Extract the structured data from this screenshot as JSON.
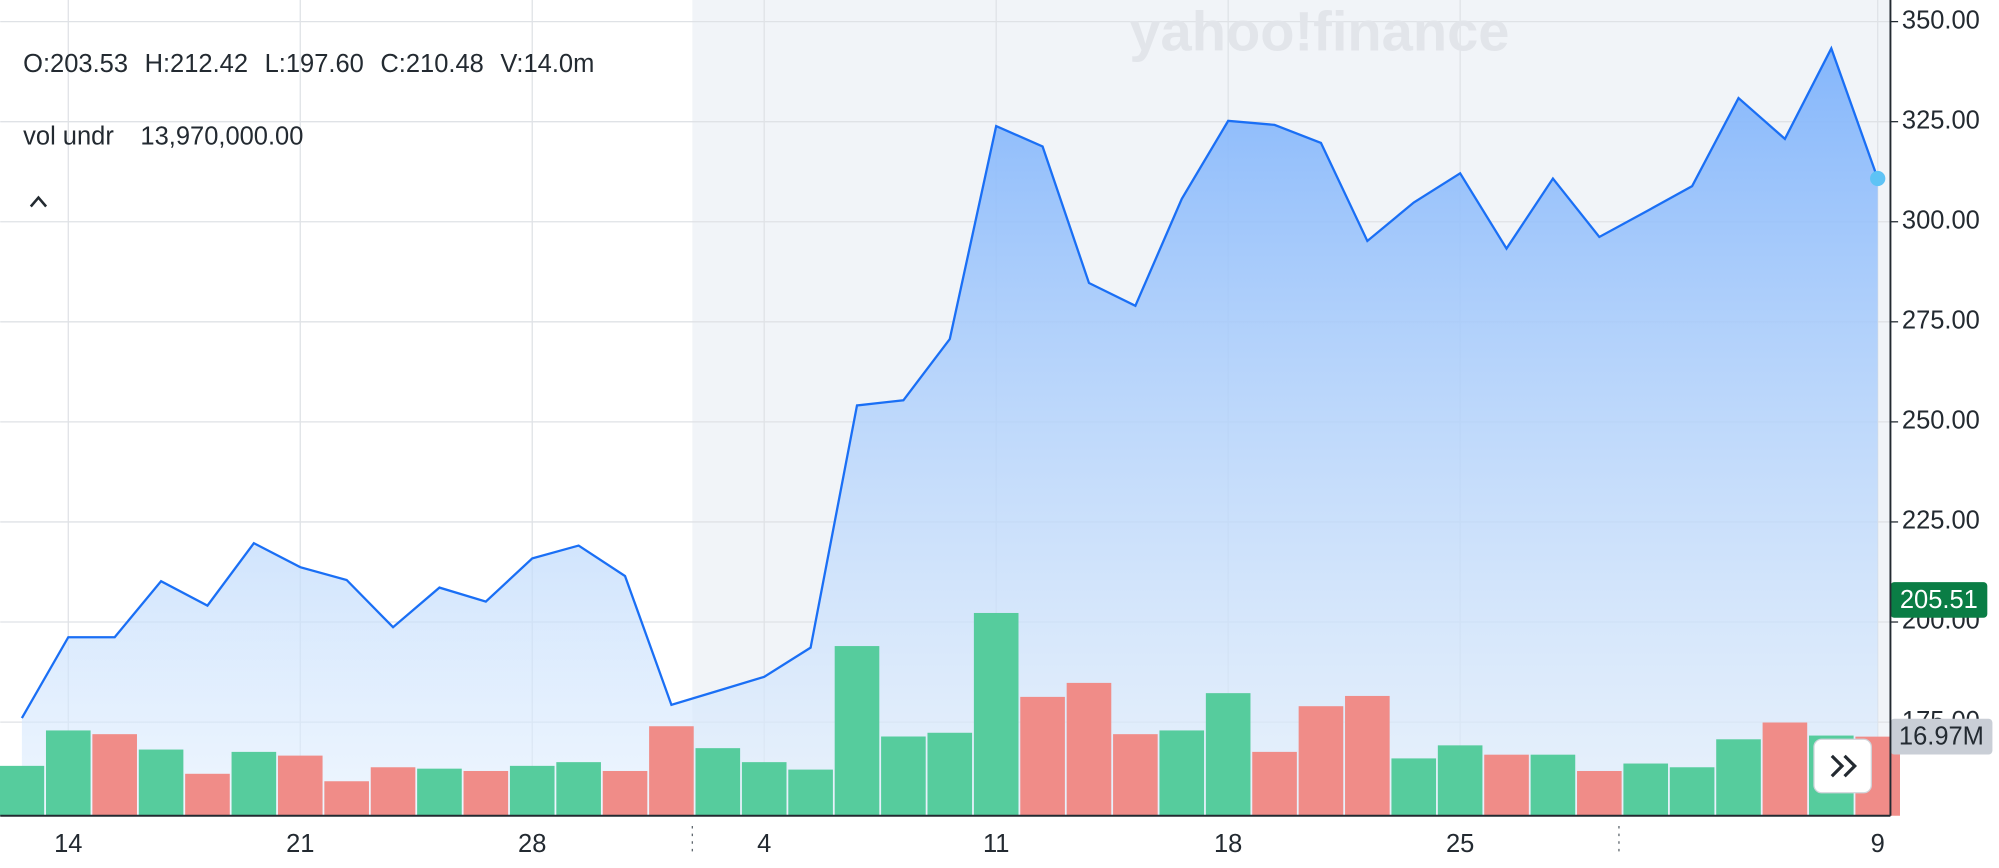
{
  "chart_data": {
    "type": "line",
    "watermark": "yahoo!finance",
    "info": [
      "O:203.53",
      "H:212.42",
      "L:197.60",
      "C:210.48",
      "V:14.0m"
    ],
    "study_name": "vol undr",
    "study_value": "13,970,000.00",
    "categories": [
      null,
      "14",
      null,
      null,
      null,
      null,
      "21",
      null,
      null,
      null,
      null,
      "28",
      null,
      null,
      null,
      null,
      "4",
      null,
      null,
      null,
      null,
      "11",
      null,
      null,
      null,
      null,
      "18",
      null,
      null,
      null,
      null,
      "25",
      null,
      null,
      null,
      null,
      null,
      null,
      null,
      null,
      "9"
    ],
    "series": [
      {
        "color": "#1a6ff5",
        "values": [
          176,
          196.2,
          196.2,
          210.2,
          204.1,
          219.7,
          213.7,
          210.5,
          198.7,
          208.6,
          205.1,
          215.9,
          219.1,
          211.5,
          179.3,
          182.8,
          186.3,
          193.6,
          254.1,
          255.4,
          270.7,
          323.9,
          318.8,
          284.7,
          279,
          305.7,
          325.2,
          324.2,
          319.7,
          295.2,
          304.8,
          312.1,
          293.3,
          310.8,
          296.2,
          302.5,
          308.9,
          330.9,
          320.7,
          343.3,
          310.8
        ]
      }
    ],
    "volume": {
      "axis": "y2",
      "values": [
        10.7,
        18.3,
        17.5,
        14.2,
        9.0,
        13.7,
        12.9,
        7.4,
        10.4,
        10.1,
        9.6,
        10.7,
        11.5,
        9.6,
        19.2,
        14.5,
        11.5,
        9.9,
        36.4,
        17.0,
        17.8,
        43.5,
        25.5,
        28.5,
        17.5,
        18.3,
        26.3,
        13.7,
        23.5,
        25.7,
        12.3,
        15.1,
        13.1,
        13.1,
        9.6,
        11.2,
        10.4,
        16.4,
        20.0,
        17.2,
        16.97
      ],
      "colors": [
        "#56cc9d",
        "#56cc9d",
        "#f08c88",
        "#56cc9d",
        "#f08c88",
        "#56cc9d",
        "#f08c88",
        "#f08c88",
        "#f08c88",
        "#56cc9d",
        "#f08c88",
        "#56cc9d",
        "#56cc9d",
        "#f08c88",
        "#f08c88",
        "#56cc9d",
        "#56cc9d",
        "#56cc9d",
        "#56cc9d",
        "#56cc9d",
        "#56cc9d",
        "#56cc9d",
        "#f08c88",
        "#f08c88",
        "#f08c88",
        "#56cc9d",
        "#56cc9d",
        "#f08c88",
        "#f08c88",
        "#f08c88",
        "#56cc9d",
        "#56cc9d",
        "#f08c88",
        "#56cc9d",
        "#f08c88",
        "#56cc9d",
        "#56cc9d",
        "#56cc9d",
        "#f08c88",
        "#56cc9d",
        "#f08c88"
      ]
    },
    "ylim": [
      151.6,
      355.4
    ],
    "yticks": [
      {
        "value": 175,
        "label": "175.00"
      },
      {
        "value": 200,
        "label": "200.00"
      },
      {
        "value": 225,
        "label": "225.00"
      },
      {
        "value": 250,
        "label": "250.00"
      },
      {
        "value": 275,
        "label": "275.00"
      },
      {
        "value": 300,
        "label": "300.00"
      },
      {
        "value": 325,
        "label": "325.00"
      },
      {
        "value": 350,
        "label": "350.00"
      }
    ],
    "y2lim": [
      0,
      175
    ],
    "price_marker": {
      "value": 205.51,
      "label": "205.51",
      "color": "#0a7d45"
    },
    "volume_marker": {
      "value": 16.97,
      "label": "16.97M",
      "color": "#c9ced6"
    },
    "grid": true
  }
}
